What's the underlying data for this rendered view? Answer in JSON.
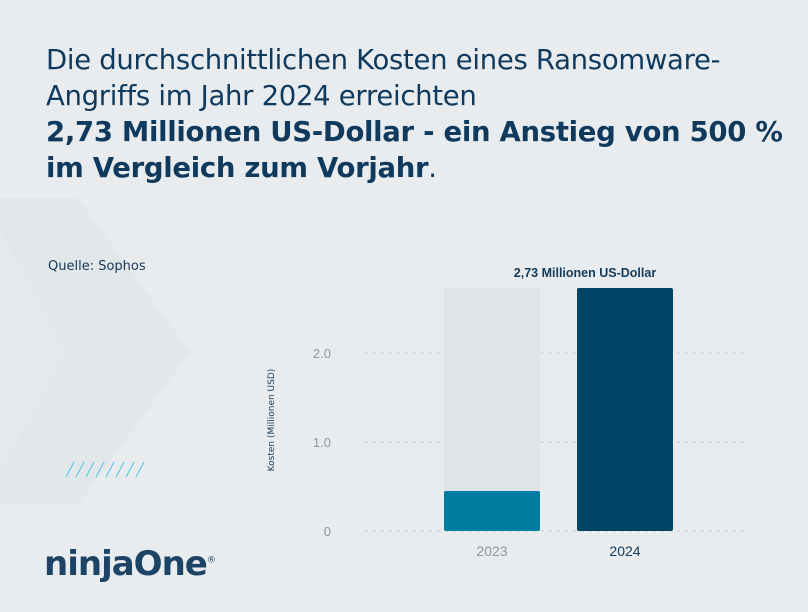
{
  "headline": {
    "line_regular": "Die durchschnittlichen Kosten eines Ransomware-Angriffs im Jahr 2024 erreichten",
    "line_bold": "2,73 Millionen US-Dollar - ein Anstieg von 500 % im Vergleich zum Vorjahr",
    "end": "."
  },
  "source": "Quelle: Sophos",
  "logo": {
    "text": "ninjaOne",
    "mark": "®"
  },
  "colors": {
    "background": "#e8ecee",
    "bar_2023": "#007ca3",
    "bar_2024": "#004466",
    "track": "#dfe4e6",
    "text": "#0f3a5d"
  },
  "chart_data": {
    "type": "bar",
    "categories": [
      "2023",
      "2024"
    ],
    "values": [
      0.45,
      2.73
    ],
    "ylabel": "Kosten (Millionen USD)",
    "xlabel": "",
    "ylim": [
      0,
      2.73
    ],
    "yticks": [
      0,
      1.0,
      2.0
    ],
    "ytick_labels": [
      "0",
      "1.0",
      "2.0"
    ],
    "data_labels": [
      "",
      "2,73 Millionen US-Dollar"
    ],
    "grid": "horizontal dotted",
    "legend": "none"
  }
}
